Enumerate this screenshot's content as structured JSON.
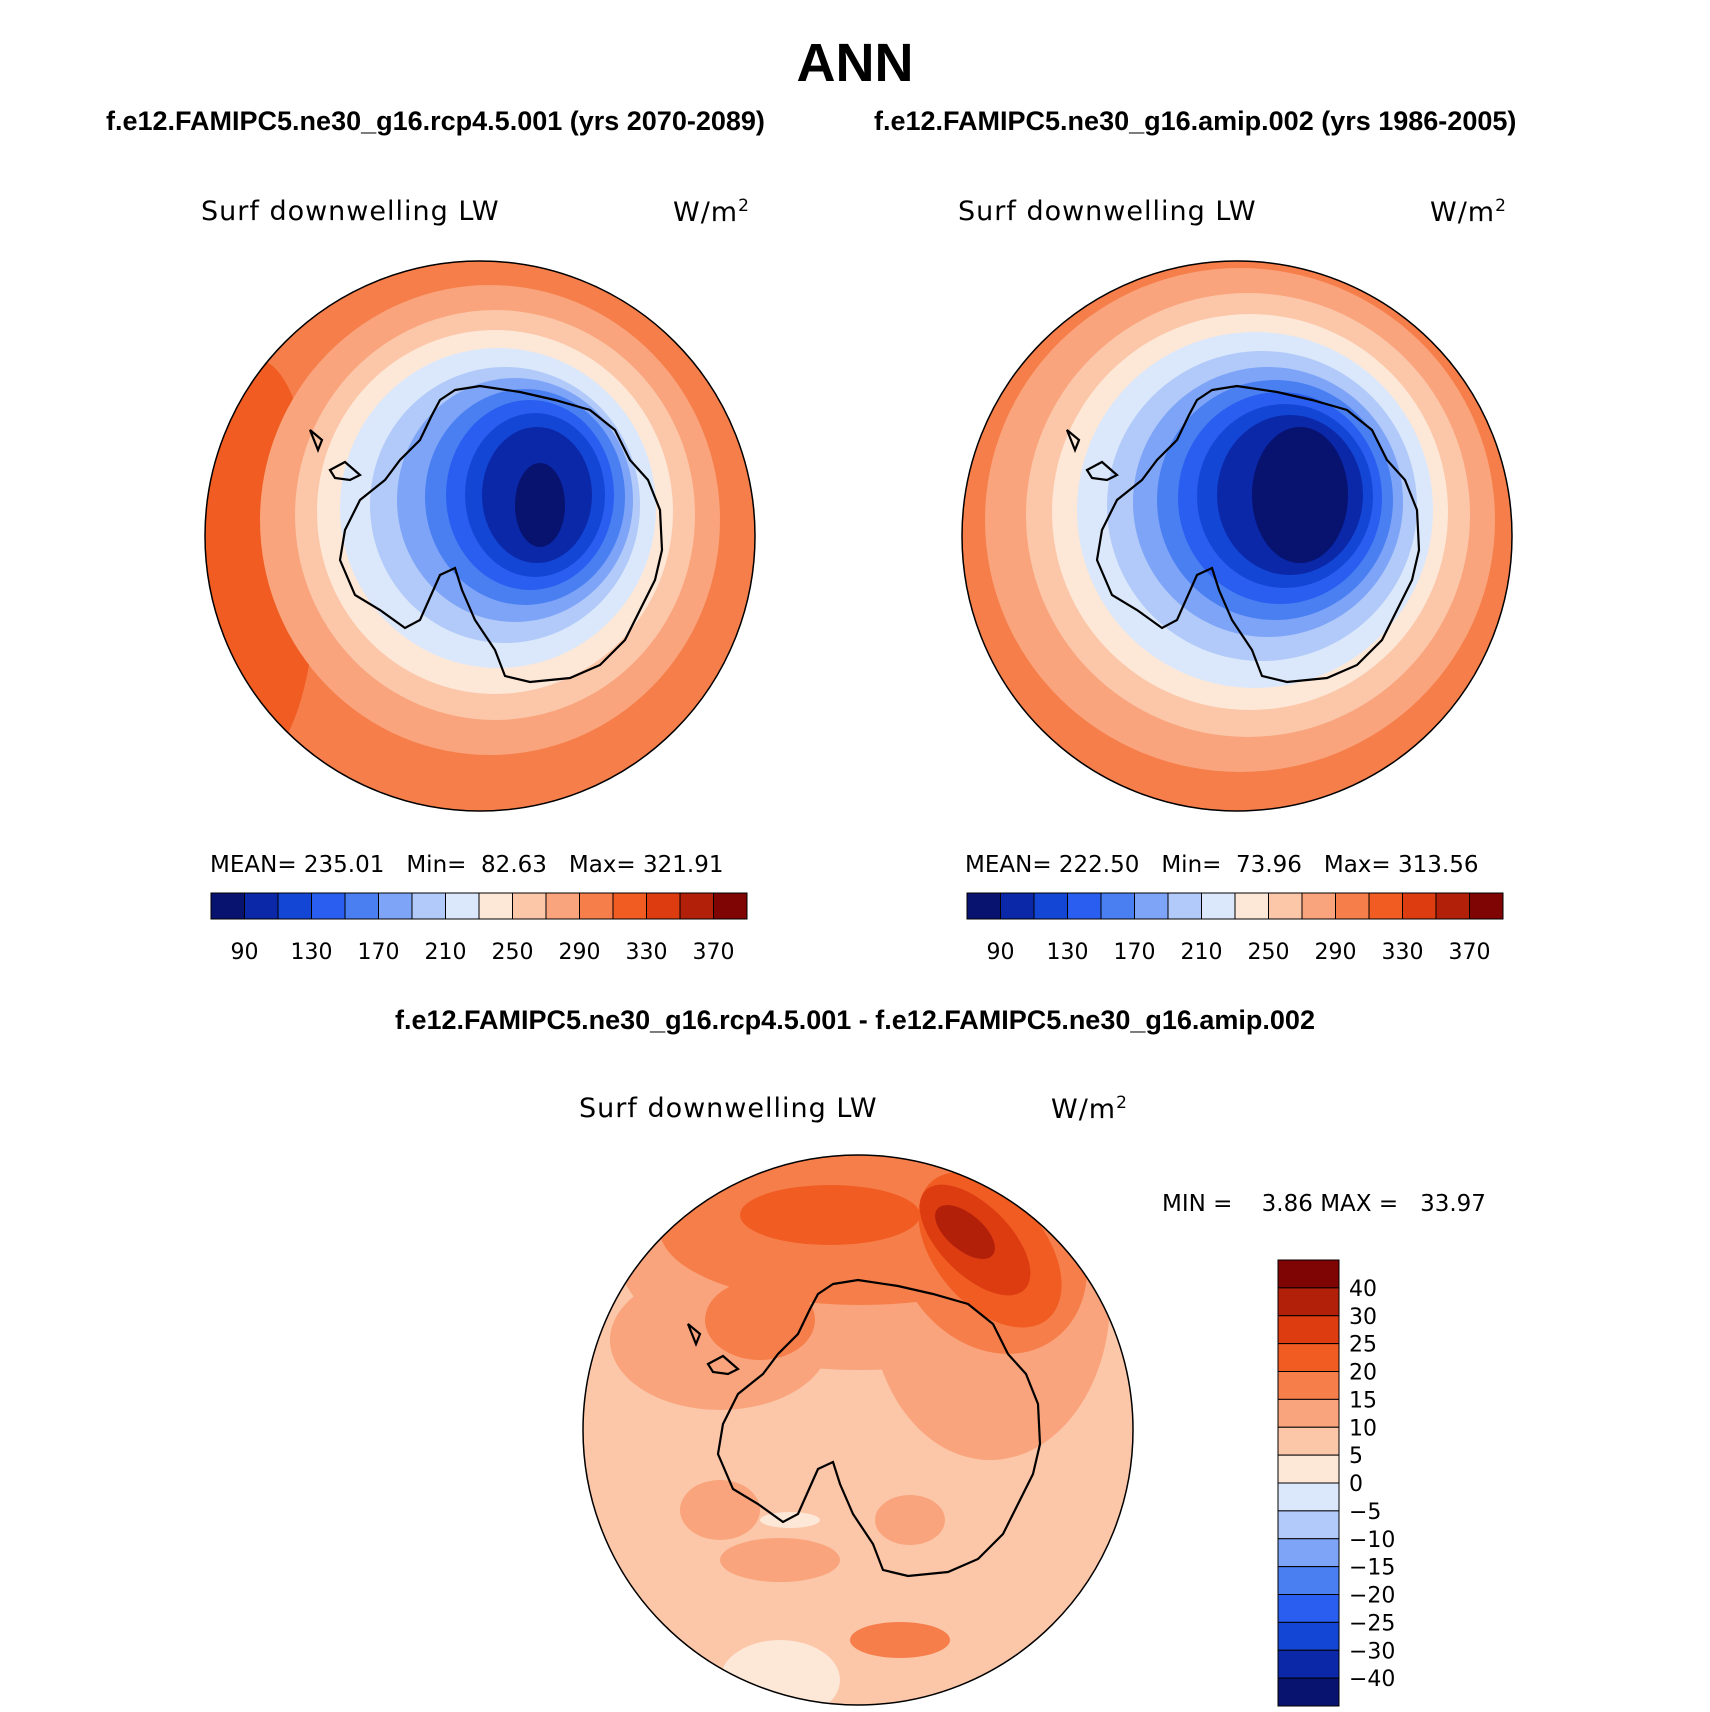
{
  "title": "ANN",
  "panels": [
    {
      "case": "f.e12.FAMIPC5.ne30_g16.rcp4.5.001 (yrs 2070-2089)",
      "variable": "Surf downwelling LW",
      "units": "W/m",
      "units_sup": "2",
      "stats": {
        "mean_label": "MEAN=",
        "mean": "235.01",
        "min_label": "Min=",
        "min": "82.63",
        "max_label": "Max=",
        "max": "321.91"
      },
      "colorbar_labels": [
        "90",
        "130",
        "170",
        "210",
        "250",
        "290",
        "330",
        "370"
      ]
    },
    {
      "case": "f.e12.FAMIPC5.ne30_g16.amip.002 (yrs 1986-2005)",
      "variable": "Surf downwelling LW",
      "units": "W/m",
      "units_sup": "2",
      "stats": {
        "mean_label": "MEAN=",
        "mean": "222.50",
        "min_label": "Min=",
        "min": "73.96",
        "max_label": "Max=",
        "max": "313.56"
      },
      "colorbar_labels": [
        "90",
        "130",
        "170",
        "210",
        "250",
        "290",
        "330",
        "370"
      ]
    }
  ],
  "difference": {
    "title": "f.e12.FAMIPC5.ne30_g16.rcp4.5.001 - f.e12.FAMIPC5.ne30_g16.amip.002",
    "variable": "Surf downwelling LW",
    "units": "W/m",
    "units_sup": "2",
    "stats": {
      "min_label": "MIN =",
      "min": "3.86",
      "max_label": "MAX =",
      "max": "33.97"
    },
    "colorbar_labels": [
      "40",
      "30",
      "25",
      "20",
      "15",
      "10",
      "5",
      "0",
      "−5",
      "−10",
      "−15",
      "−20",
      "−25",
      "−30",
      "−40"
    ]
  },
  "colors": {
    "abs_scale": [
      "#08126f",
      "#0a28a8",
      "#1446d6",
      "#2a5ef0",
      "#4a7ff2",
      "#7ea4f8",
      "#b2caf9",
      "#dbe8fb",
      "#fde7d6",
      "#fcc6a8",
      "#f9a47c",
      "#f67e4a",
      "#f05c22",
      "#dd3b10",
      "#b3200a",
      "#7f0505"
    ],
    "diff_scale": [
      "#08126f",
      "#0a28a8",
      "#1446d6",
      "#2a5ef0",
      "#4a7ff2",
      "#7ea4f8",
      "#b2caf9",
      "#dbe8fb",
      "#fde7d6",
      "#fcc6a8",
      "#f9a47c",
      "#f67e4a",
      "#f05c22",
      "#dd3b10",
      "#b3200a",
      "#7f0505"
    ]
  }
}
